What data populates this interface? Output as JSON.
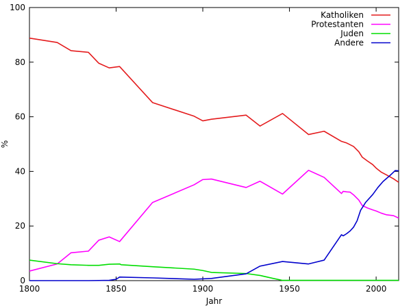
{
  "chart_data": {
    "type": "line",
    "title": "",
    "xlabel": "Jahr",
    "ylabel": "%",
    "xlim": [
      1800,
      2013
    ],
    "ylim": [
      0,
      100
    ],
    "x_ticks": [
      1800,
      1850,
      1900,
      1950,
      2000
    ],
    "y_ticks": [
      0,
      20,
      40,
      60,
      80,
      100
    ],
    "legend_position": "top-right",
    "grid": false,
    "series": [
      {
        "name": "Katholiken",
        "color": "#e41a1c",
        "points": [
          [
            1800,
            88.8
          ],
          [
            1816,
            87.2
          ],
          [
            1824,
            84.2
          ],
          [
            1834,
            83.6
          ],
          [
            1840,
            79.6
          ],
          [
            1846,
            77.9
          ],
          [
            1852,
            78.4
          ],
          [
            1871,
            65.2
          ],
          [
            1895,
            60.2
          ],
          [
            1900,
            58.5
          ],
          [
            1905,
            59.1
          ],
          [
            1925,
            60.6
          ],
          [
            1933,
            56.6
          ],
          [
            1946,
            61.2
          ],
          [
            1961,
            53.5
          ],
          [
            1970,
            54.7
          ],
          [
            1980,
            51.0
          ],
          [
            1983,
            50.4
          ],
          [
            1987,
            49.1
          ],
          [
            1990,
            47.2
          ],
          [
            1992,
            45.2
          ],
          [
            1995,
            43.8
          ],
          [
            1998,
            42.5
          ],
          [
            2000,
            41.2
          ],
          [
            2003,
            39.7
          ],
          [
            2006,
            38.7
          ],
          [
            2010,
            37.3
          ],
          [
            2013,
            36.0
          ]
        ]
      },
      {
        "name": "Protestanten",
        "color": "#ff00ff",
        "points": [
          [
            1800,
            3.5
          ],
          [
            1816,
            6.1
          ],
          [
            1824,
            10.2
          ],
          [
            1834,
            10.8
          ],
          [
            1840,
            14.8
          ],
          [
            1846,
            16.0
          ],
          [
            1852,
            14.3
          ],
          [
            1871,
            28.6
          ],
          [
            1895,
            35.1
          ],
          [
            1900,
            37.0
          ],
          [
            1905,
            37.2
          ],
          [
            1925,
            34.1
          ],
          [
            1933,
            36.4
          ],
          [
            1946,
            31.7
          ],
          [
            1961,
            40.4
          ],
          [
            1970,
            37.8
          ],
          [
            1980,
            31.9
          ],
          [
            1981,
            32.7
          ],
          [
            1983,
            32.5
          ],
          [
            1985,
            32.4
          ],
          [
            1987,
            31.4
          ],
          [
            1990,
            29.5
          ],
          [
            1992,
            27.5
          ],
          [
            1995,
            26.6
          ],
          [
            1998,
            25.9
          ],
          [
            2000,
            25.5
          ],
          [
            2003,
            24.7
          ],
          [
            2006,
            24.1
          ],
          [
            2010,
            23.8
          ],
          [
            2013,
            22.9
          ]
        ]
      },
      {
        "name": "Juden",
        "color": "#00dd00",
        "points": [
          [
            1800,
            7.5
          ],
          [
            1816,
            6.2
          ],
          [
            1824,
            5.8
          ],
          [
            1834,
            5.6
          ],
          [
            1840,
            5.6
          ],
          [
            1846,
            6.0
          ],
          [
            1852,
            6.1
          ],
          [
            1853,
            5.8
          ],
          [
            1871,
            5.1
          ],
          [
            1895,
            4.2
          ],
          [
            1900,
            3.7
          ],
          [
            1905,
            3.0
          ],
          [
            1925,
            2.6
          ],
          [
            1933,
            1.9
          ],
          [
            1940,
            0.9
          ],
          [
            1946,
            0.1
          ],
          [
            1961,
            0.1
          ],
          [
            1970,
            0.1
          ],
          [
            2013,
            0.1
          ]
        ]
      },
      {
        "name": "Andere",
        "color": "#0000cc",
        "points": [
          [
            1800,
            0
          ],
          [
            1816,
            0
          ],
          [
            1834,
            0
          ],
          [
            1846,
            0.1
          ],
          [
            1850,
            0.5
          ],
          [
            1852,
            1.3
          ],
          [
            1871,
            1.0
          ],
          [
            1895,
            0.5
          ],
          [
            1905,
            0.8
          ],
          [
            1925,
            2.5
          ],
          [
            1933,
            5.3
          ],
          [
            1946,
            7.0
          ],
          [
            1961,
            6.1
          ],
          [
            1970,
            7.5
          ],
          [
            1980,
            16.8
          ],
          [
            1981,
            16.4
          ],
          [
            1983,
            17.2
          ],
          [
            1985,
            18.2
          ],
          [
            1987,
            19.6
          ],
          [
            1989,
            21.9
          ],
          [
            1991,
            25.7
          ],
          [
            1994,
            28.7
          ],
          [
            1998,
            31.5
          ],
          [
            2001,
            34.1
          ],
          [
            2004,
            36.3
          ],
          [
            2008,
            38.5
          ],
          [
            2011,
            40.3
          ],
          [
            2013,
            40.2
          ]
        ]
      }
    ]
  }
}
